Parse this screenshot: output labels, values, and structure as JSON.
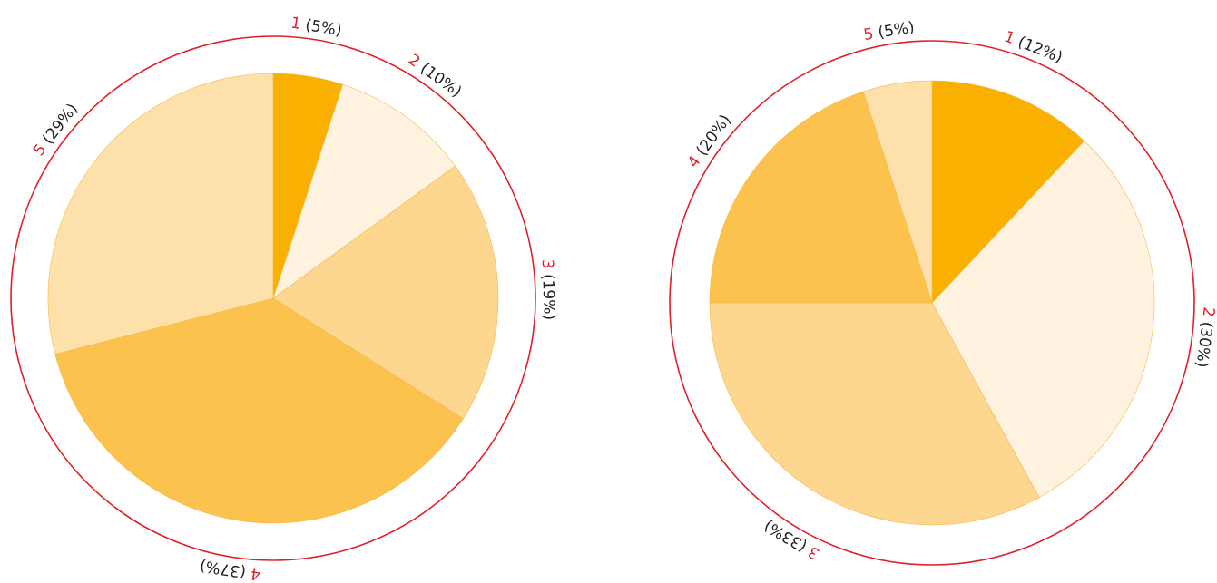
{
  "chart_data": [
    {
      "type": "pie",
      "categories": [
        "1",
        "2",
        "3",
        "4",
        "5"
      ],
      "values": [
        5,
        10,
        19,
        37,
        29
      ],
      "value_labels": [
        "(5%)",
        "(10%)",
        "(19%)",
        "(37%)",
        "(29%)"
      ],
      "colors": [
        "#f9b000",
        "#fff3e0",
        "#fdd78f",
        "#fcc24e",
        "#fee1aa"
      ]
    },
    {
      "type": "pie",
      "categories": [
        "1",
        "2",
        "3",
        "4",
        "5"
      ],
      "values": [
        12,
        30,
        33,
        20,
        5
      ],
      "value_labels": [
        "(12%)",
        "(30%)",
        "(33%)",
        "(20%)",
        "(5%)"
      ],
      "colors": [
        "#f9b000",
        "#fff3e0",
        "#fdd78f",
        "#fcc24e",
        "#fee1aa"
      ]
    }
  ]
}
